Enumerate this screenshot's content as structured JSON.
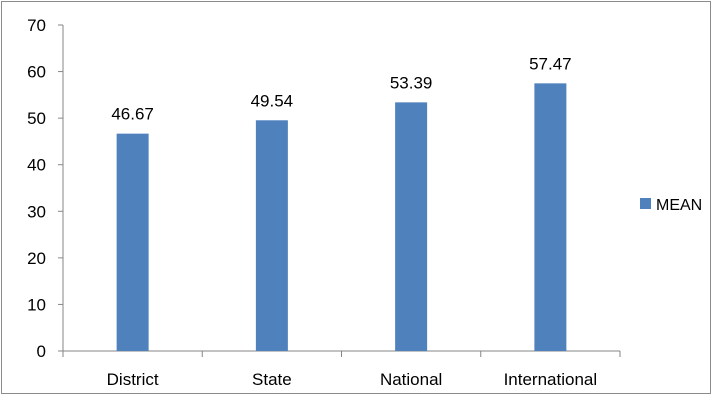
{
  "chart_data": {
    "type": "bar",
    "categories": [
      "District",
      "State",
      "National",
      "International"
    ],
    "series": [
      {
        "name": "MEAN",
        "values": [
          46.67,
          49.54,
          53.39,
          57.47
        ],
        "color": "#4F81BD"
      }
    ],
    "data_labels": [
      "46.67",
      "49.54",
      "53.39",
      "57.47"
    ],
    "ylim": [
      0,
      70
    ],
    "yticks": [
      0,
      10,
      20,
      30,
      40,
      50,
      60,
      70
    ],
    "grid": false,
    "legend": {
      "placement": "right",
      "entries": [
        "MEAN"
      ]
    }
  }
}
